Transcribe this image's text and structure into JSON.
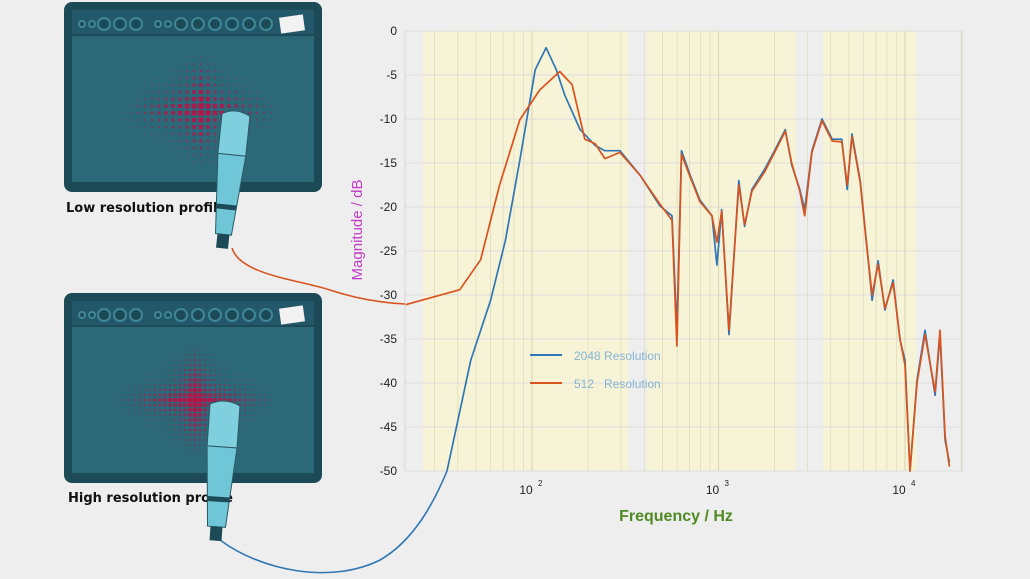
{
  "illustrations": {
    "low_label": "Low resolution profile",
    "high_label": "High resolution profile"
  },
  "colors": {
    "series_2048": "#2e77b4",
    "series_512": "#d9531e",
    "band": "#f7f3d6",
    "ylabel": "#c23cc6",
    "xlabel": "#4f8a22",
    "legend_text": "#86b4d6",
    "amp_body": "#1d4a57",
    "amp_panel": "#2c6978",
    "mic": "#6ec6d6"
  },
  "chart_data": {
    "type": "line",
    "title": "",
    "xlabel": "Frequency / Hz",
    "ylabel": "Magnitude / dB",
    "xscale": "log",
    "xlim": [
      21,
      20000
    ],
    "ylim": [
      -50,
      0
    ],
    "yticks": [
      0,
      -5,
      -10,
      -15,
      -20,
      -25,
      -30,
      -35,
      -40,
      -45,
      -50
    ],
    "ytick_labels": [
      "0",
      "-5",
      "-10",
      "-15",
      "-20",
      "-25",
      "-30",
      "-35",
      "-40",
      "-45",
      "-50"
    ],
    "xticks": [
      100,
      1000,
      10000
    ],
    "xtick_labels": [
      {
        "base": "10",
        "exp": "2"
      },
      {
        "base": "10",
        "exp": "3"
      },
      {
        "base": "10",
        "exp": "4"
      }
    ],
    "grid": true,
    "legend_position": "lower-left",
    "shaded_bands_hz": [
      [
        26,
        330
      ],
      [
        414,
        2600
      ],
      [
        3630,
        11500
      ]
    ],
    "series": [
      {
        "name": "2048 Resolution",
        "color": "#2e77b4",
        "points": [
          [
            35,
            -50
          ],
          [
            47,
            -37.4
          ],
          [
            60,
            -30.6
          ],
          [
            72,
            -23.8
          ],
          [
            86,
            -14.7
          ],
          [
            104,
            -4.4
          ],
          [
            119,
            -1.9
          ],
          [
            135,
            -4.4
          ],
          [
            150,
            -7.3
          ],
          [
            181,
            -11.2
          ],
          [
            218,
            -13
          ],
          [
            246,
            -13.6
          ],
          [
            296,
            -13.6
          ],
          [
            380,
            -16.4
          ],
          [
            486,
            -19.9
          ],
          [
            563,
            -21
          ],
          [
            598,
            -34
          ],
          [
            633,
            -13.6
          ],
          [
            705,
            -16.4
          ],
          [
            795,
            -19.2
          ],
          [
            923,
            -21
          ],
          [
            980,
            -26.6
          ],
          [
            1040,
            -20.3
          ],
          [
            1138,
            -34.5
          ],
          [
            1285,
            -17
          ],
          [
            1380,
            -22.2
          ],
          [
            1510,
            -18
          ],
          [
            1770,
            -15.7
          ],
          [
            2000,
            -13.6
          ],
          [
            2280,
            -11.2
          ],
          [
            2470,
            -15.2
          ],
          [
            2730,
            -18
          ],
          [
            2900,
            -20.3
          ],
          [
            3170,
            -13.6
          ],
          [
            3590,
            -10
          ],
          [
            4070,
            -12.3
          ],
          [
            4580,
            -12.3
          ],
          [
            4900,
            -18
          ],
          [
            5200,
            -11.7
          ],
          [
            5750,
            -17
          ],
          [
            6200,
            -23.8
          ],
          [
            6660,
            -30.6
          ],
          [
            7170,
            -26.1
          ],
          [
            7800,
            -31.7
          ],
          [
            8630,
            -28.3
          ],
          [
            9400,
            -35.1
          ],
          [
            10000,
            -37.4
          ],
          [
            10640,
            -50
          ],
          [
            11590,
            -39.7
          ],
          [
            12800,
            -34
          ],
          [
            14500,
            -41.4
          ],
          [
            15400,
            -34.5
          ],
          [
            16400,
            -46.5
          ],
          [
            17300,
            -49
          ]
        ]
      },
      {
        "name": "512   Resolution",
        "color": "#d9531e",
        "points": [
          [
            21,
            -31.1
          ],
          [
            41,
            -29.4
          ],
          [
            53,
            -26
          ],
          [
            67,
            -17.5
          ],
          [
            86,
            -10.1
          ],
          [
            110,
            -6.7
          ],
          [
            141,
            -4.6
          ],
          [
            164,
            -6.1
          ],
          [
            192,
            -12.3
          ],
          [
            218,
            -12.8
          ],
          [
            246,
            -14.5
          ],
          [
            296,
            -13.8
          ],
          [
            380,
            -16.4
          ],
          [
            486,
            -19.7
          ],
          [
            563,
            -21.5
          ],
          [
            598,
            -35.8
          ],
          [
            633,
            -14
          ],
          [
            705,
            -16.6
          ],
          [
            795,
            -19.4
          ],
          [
            923,
            -21
          ],
          [
            980,
            -24
          ],
          [
            1040,
            -20.5
          ],
          [
            1138,
            -34
          ],
          [
            1285,
            -17.5
          ],
          [
            1380,
            -22
          ],
          [
            1510,
            -18.2
          ],
          [
            1770,
            -16
          ],
          [
            2000,
            -13.8
          ],
          [
            2280,
            -11.4
          ],
          [
            2470,
            -15
          ],
          [
            2730,
            -18.2
          ],
          [
            2900,
            -21
          ],
          [
            3170,
            -13.8
          ],
          [
            3590,
            -10.2
          ],
          [
            4070,
            -12.5
          ],
          [
            4580,
            -12.6
          ],
          [
            4900,
            -17.5
          ],
          [
            5200,
            -12
          ],
          [
            5750,
            -17.2
          ],
          [
            6200,
            -24
          ],
          [
            6660,
            -30
          ],
          [
            7170,
            -26.5
          ],
          [
            7800,
            -31.5
          ],
          [
            8630,
            -28.6
          ],
          [
            9400,
            -35
          ],
          [
            10000,
            -38
          ],
          [
            10640,
            -50
          ],
          [
            11590,
            -40
          ],
          [
            12800,
            -34.5
          ],
          [
            14500,
            -41
          ],
          [
            15400,
            -34
          ],
          [
            16400,
            -46
          ],
          [
            17300,
            -49.5
          ]
        ]
      }
    ]
  }
}
